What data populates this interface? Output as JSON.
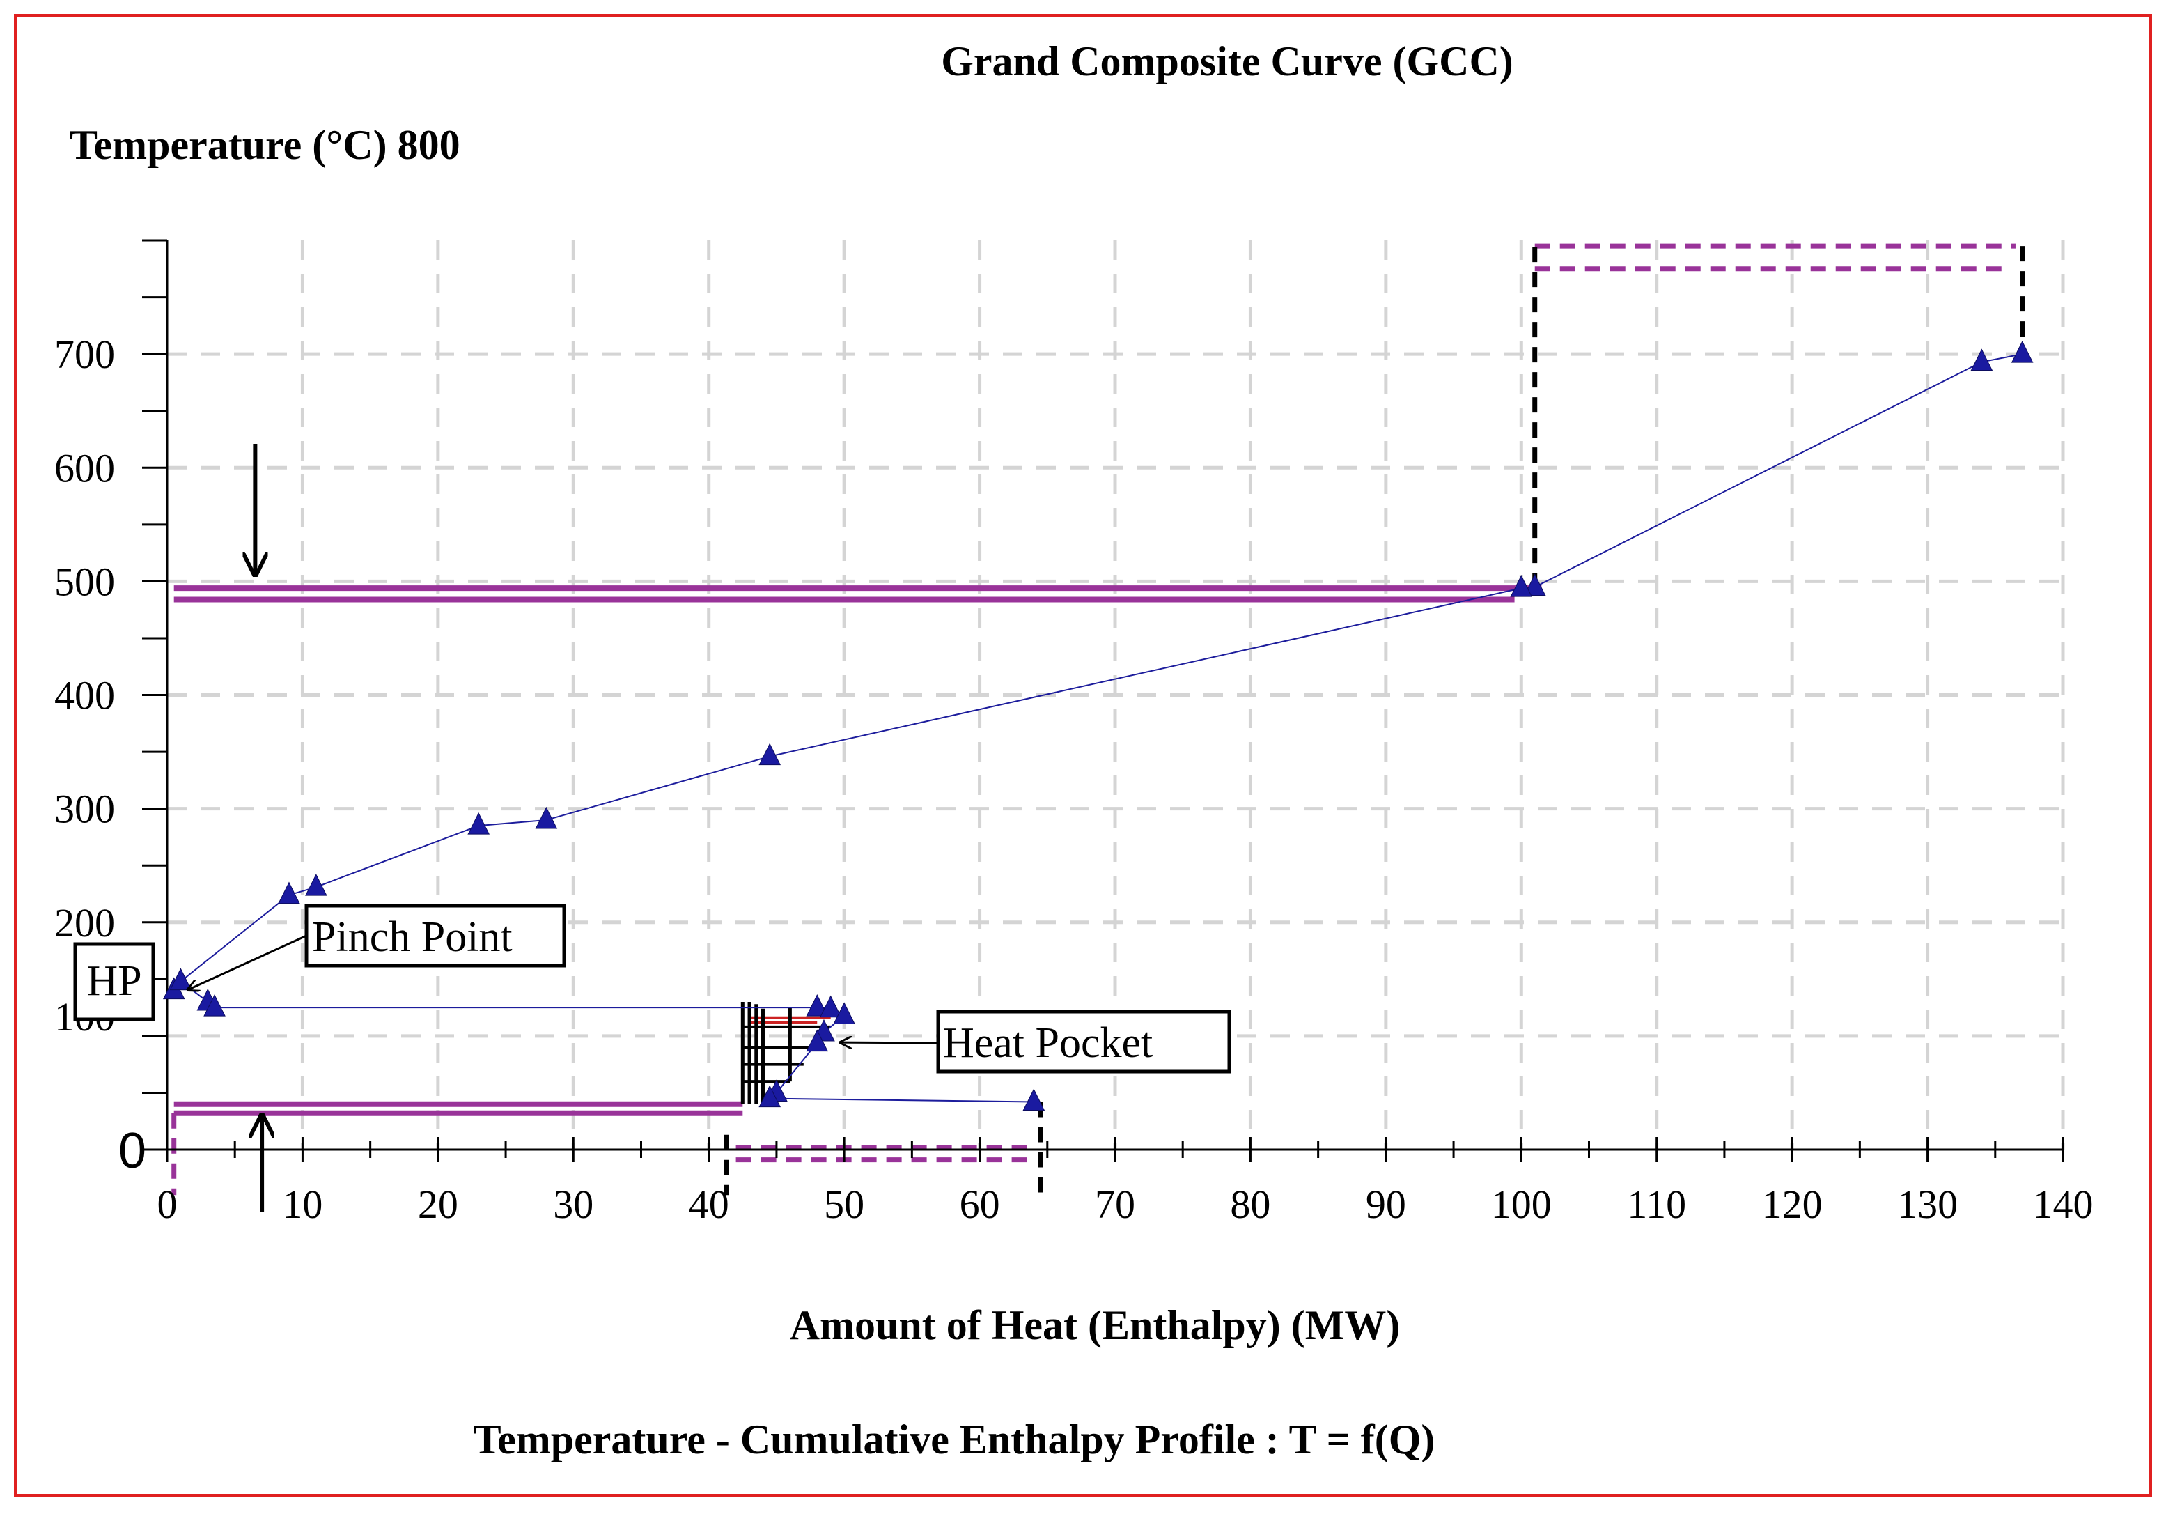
{
  "chart_data": {
    "type": "line",
    "title": "Grand Composite Curve (GCC)",
    "ylabel": "Temperature (°C) 800",
    "xlabel": "Amount of Heat (Enthalpy) (MW)",
    "caption": "Temperature - Cumulative Enthalpy Profile : T = f(Q)",
    "xlim": [
      0,
      140
    ],
    "ylim": [
      0,
      800
    ],
    "grid": true,
    "x_ticks": [
      0,
      10,
      20,
      30,
      40,
      50,
      60,
      70,
      80,
      90,
      100,
      110,
      120,
      130,
      140
    ],
    "x_tick_labels": [
      "0",
      "10",
      "20",
      "30",
      "40",
      "50",
      "60",
      "70",
      "80",
      "90",
      "100",
      "110",
      "120",
      "130",
      "140"
    ],
    "y_ticks": [
      0,
      100,
      200,
      300,
      400,
      500,
      600,
      700
    ],
    "y_tick_labels": [
      "0",
      "100",
      "200",
      "300",
      "400",
      "500",
      "600",
      "700"
    ],
    "series": [
      {
        "name": "Grand Composite Curve",
        "color": "#1c1c9c",
        "marker": "triangle",
        "x": [
          137,
          134,
          101,
          100,
          44.5,
          28,
          23,
          11,
          9,
          1,
          0.5,
          1,
          3,
          3.5,
          48,
          49,
          50,
          48.5,
          48,
          45,
          44.5,
          64
        ],
        "y": [
          700,
          693,
          495,
          494,
          346,
          290,
          285,
          231,
          224,
          148,
          140,
          148,
          130,
          125,
          125,
          124,
          118,
          103,
          94,
          50,
          45,
          42
        ]
      }
    ],
    "utility_lines": [
      {
        "style": "solid",
        "color": "#993399",
        "x": [
          0.5,
          101.5
        ],
        "y": [
          494,
          494
        ]
      },
      {
        "style": "solid",
        "color": "#993399",
        "x": [
          0.5,
          99.5
        ],
        "y": [
          484,
          484
        ]
      },
      {
        "style": "solid",
        "color": "#993399",
        "x": [
          0.5,
          42.5
        ],
        "y": [
          40,
          40
        ]
      },
      {
        "style": "solid",
        "color": "#993399",
        "x": [
          0.5,
          42.5
        ],
        "y": [
          32,
          32
        ]
      },
      {
        "style": "dashed",
        "color": "#993399",
        "x": [
          101,
          136.5
        ],
        "y": [
          795,
          795
        ]
      },
      {
        "style": "dashed",
        "color": "#993399",
        "x": [
          101,
          136
        ],
        "y": [
          775,
          775
        ]
      },
      {
        "style": "dashed",
        "color": "#993399",
        "x": [
          42,
          64
        ],
        "y": [
          2,
          2
        ]
      },
      {
        "style": "dashed",
        "color": "#993399",
        "x": [
          42,
          64
        ],
        "y": [
          -9,
          -9
        ]
      },
      {
        "style": "dashed",
        "color": "#993399",
        "x": [
          0.5,
          0.5
        ],
        "y": [
          32,
          -40
        ]
      },
      {
        "style": "dashed",
        "color": "#000000",
        "x": [
          101,
          101
        ],
        "y": [
          494,
          800
        ]
      },
      {
        "style": "dashed",
        "color": "#000000",
        "x": [
          137,
          137
        ],
        "y": [
          795,
          700
        ]
      },
      {
        "style": "dashed",
        "color": "#000000",
        "x": [
          41.3,
          41.3
        ],
        "y": [
          13,
          -40
        ]
      },
      {
        "style": "dashed",
        "color": "#000000",
        "x": [
          64.5,
          64.5
        ],
        "y": [
          42,
          -40
        ]
      },
      {
        "style": "solid",
        "color": "#cc2222",
        "x": [
          43,
          49
        ],
        "y": [
          116,
          116
        ]
      },
      {
        "style": "solid",
        "color": "#cc2222",
        "x": [
          43,
          48
        ],
        "y": [
          112,
          112
        ]
      }
    ],
    "heat_pocket_verticals": [
      {
        "x": 42.5,
        "y": [
          40,
          130
        ]
      },
      {
        "x": 43,
        "y": [
          40,
          130
        ]
      },
      {
        "x": 43.5,
        "y": [
          40,
          128
        ]
      },
      {
        "x": 44,
        "y": [
          40,
          124
        ]
      },
      {
        "x": 46,
        "y": [
          60,
          125
        ]
      }
    ],
    "heat_pocket_horizontals": [
      {
        "x": [
          42.5,
          49
        ],
        "y": 108
      },
      {
        "x": [
          42.5,
          48.5
        ],
        "y": 90
      },
      {
        "x": [
          42.5,
          47
        ],
        "y": 75
      },
      {
        "x": [
          42.5,
          46
        ],
        "y": 60
      }
    ],
    "arrows": [
      {
        "direction": "down",
        "x": 6.5,
        "y": [
          621,
          506
        ]
      },
      {
        "direction": "up",
        "x": 7,
        "y": [
          -55,
          30
        ]
      }
    ],
    "annotations": [
      {
        "id": "hp",
        "text": "HP"
      },
      {
        "id": "pinch",
        "text": "Pinch Point",
        "target_x": 0.8,
        "target_y": 143
      },
      {
        "id": "pocket",
        "text": "Heat Pocket",
        "target_x": 49,
        "target_y": 98
      }
    ]
  }
}
